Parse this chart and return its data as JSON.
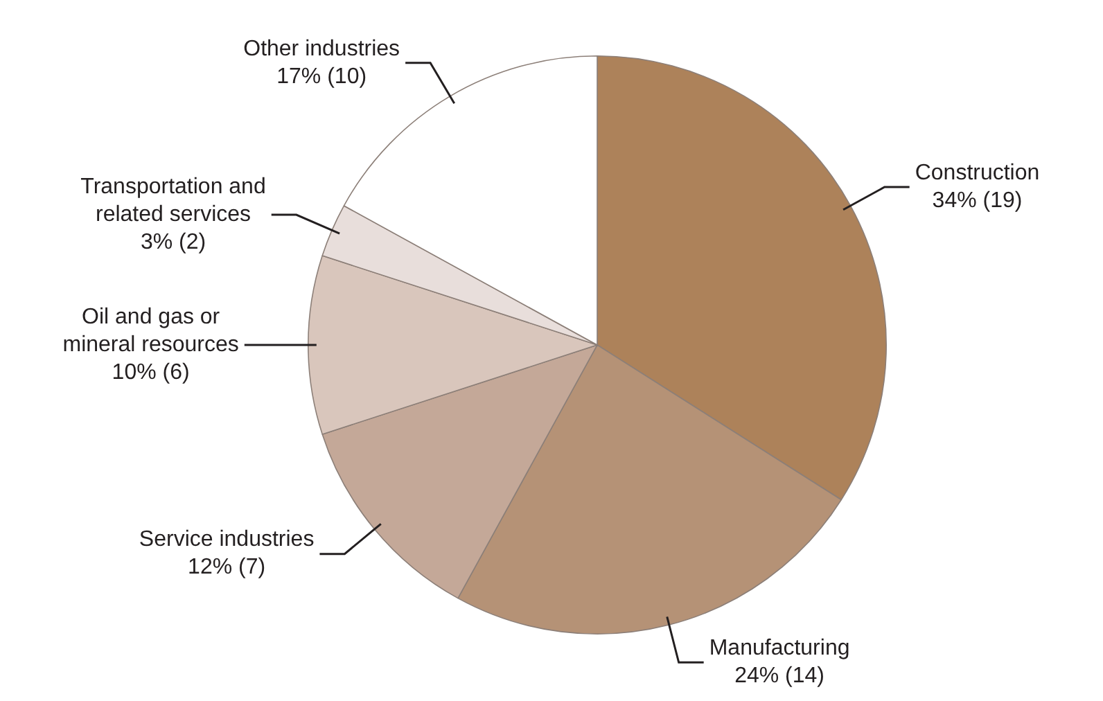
{
  "chart_data": {
    "type": "pie",
    "categories": [
      "Construction",
      "Manufacturing",
      "Service industries",
      "Oil and gas or mineral resources",
      "Transportation and related services",
      "Other industries"
    ],
    "values": [
      34,
      24,
      12,
      10,
      3,
      17
    ],
    "colors": [
      "#ad825a",
      "#b59276",
      "#c4a898",
      "#d9c6bc",
      "#e8dedb",
      "#ffffff"
    ],
    "value_labels": [
      "34% (19)",
      "24% (14)",
      "12% (7)",
      "10% (6)",
      "3% (2)",
      "17% (10)"
    ],
    "legend": false
  }
}
